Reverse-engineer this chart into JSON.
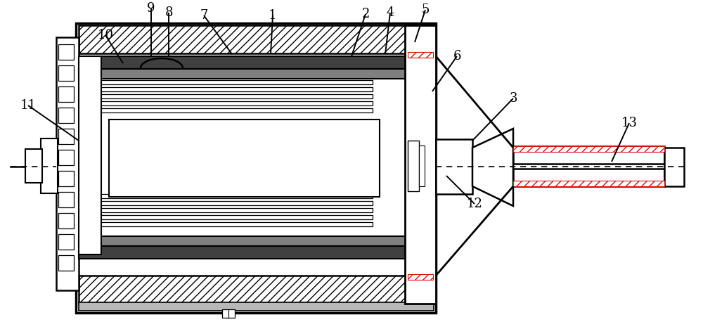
{
  "bg": "#ffffff",
  "lc": "#000000",
  "dark_gray": "#404040",
  "mid_gray": "#808080",
  "light_gray": "#b8b8b8",
  "red": "#dd1111",
  "fig_w": 10.0,
  "fig_h": 4.68,
  "dpi": 100
}
